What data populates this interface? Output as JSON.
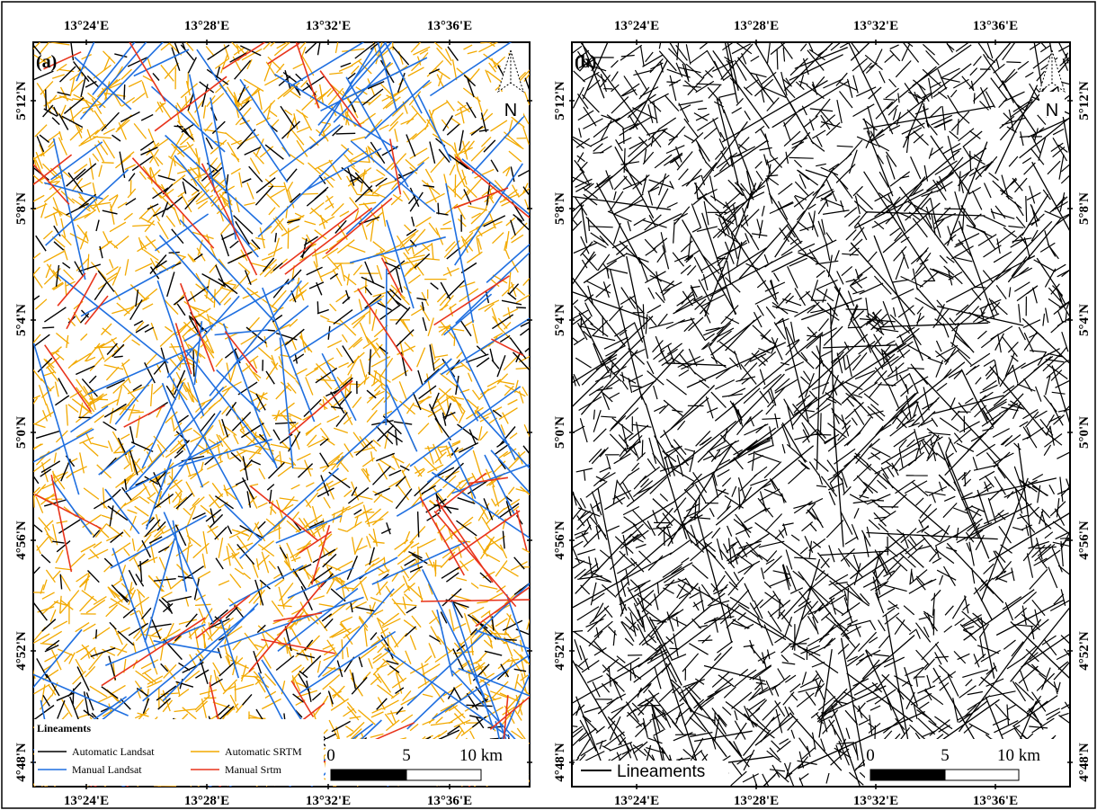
{
  "colors": {
    "automatic_landsat": "#000000",
    "automatic_srtm": "#f2a900",
    "manual_landsat": "#1f6fe0",
    "manual_srtm": "#e8341c"
  },
  "panel_a": {
    "label": "(a)",
    "legend": {
      "title": "Lineaments",
      "entries": [
        {
          "label": "Automatic Landsat",
          "key": "automatic_landsat"
        },
        {
          "label": "Automatic SRTM",
          "key": "automatic_srtm"
        },
        {
          "label": "Manual Landsat",
          "key": "manual_landsat"
        },
        {
          "label": "Manual Srtm",
          "key": "manual_srtm"
        }
      ]
    },
    "scale_bar": {
      "labels": [
        "0",
        "5",
        "10 km"
      ]
    },
    "north_label": "N"
  },
  "panel_b": {
    "label": "(b)",
    "legend": {
      "entries": [
        {
          "label": "Lineaments",
          "key": "automatic_landsat"
        }
      ]
    },
    "scale_bar": {
      "labels": [
        "0",
        "5",
        "10 km"
      ]
    },
    "north_label": "N"
  },
  "axes": {
    "lon_ticks": [
      "13°24'E",
      "13°28'E",
      "13°32'E",
      "13°36'E"
    ],
    "lat_ticks": [
      "5°12'N",
      "5°8'N",
      "5°4'N",
      "5°0'N",
      "4°56'N",
      "4°52'N",
      "4°48'N"
    ]
  }
}
